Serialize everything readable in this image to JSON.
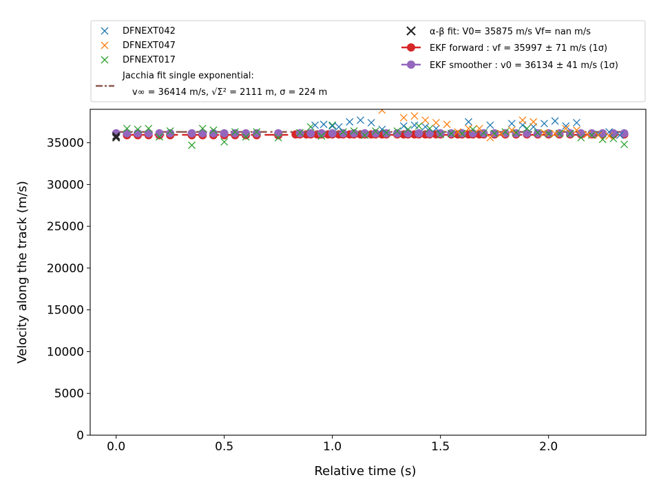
{
  "chart_data": {
    "type": "scatter",
    "xlabel": "Relative time (s)",
    "ylabel": "Velocity along the track (m/s)",
    "xlim": [
      -0.12,
      2.45
    ],
    "ylim": [
      0,
      39000
    ],
    "xticks": [
      0.0,
      0.5,
      1.0,
      1.5,
      2.0
    ],
    "xtick_labels": [
      "0.0",
      "0.5",
      "1.0",
      "1.5",
      "2.0"
    ],
    "yticks": [
      0,
      5000,
      10000,
      15000,
      20000,
      25000,
      30000,
      35000
    ],
    "ytick_labels": [
      "0",
      "5000",
      "10000",
      "15000",
      "20000",
      "25000",
      "30000",
      "35000"
    ],
    "grid": false,
    "legend_position": "above plot",
    "legend": {
      "left": [
        {
          "label": "DFNEXT042"
        },
        {
          "label": "DFNEXT047"
        },
        {
          "label": "DFNEXT017"
        },
        {
          "label": "Jacchia fit single exponential:"
        }
      ],
      "jacchia_detail": "v∞ = 36414 m/s, √Σ² = 2111 m, σ = 224 m",
      "right": [
        {
          "label": "α-β fit: V0= 35875 m/s   Vf= nan m/s"
        },
        {
          "label": "EKF forward : vf =  35997 ± 71 m/s (1σ)"
        },
        {
          "label": "EKF smoother : v0 =  36134 ± 41 m/s (1σ)"
        }
      ]
    },
    "series": [
      {
        "name": "DFNEXT042",
        "marker": "x",
        "color": "#1f77b4",
        "x": [
          0.92,
          0.96,
          1.0,
          1.03,
          1.08,
          1.13,
          1.18,
          1.23,
          1.33,
          1.38,
          1.43,
          1.48,
          1.63,
          1.73,
          1.83,
          1.88,
          1.93,
          1.98,
          2.03,
          2.08,
          2.13,
          2.23,
          2.28,
          2.33
        ],
        "y": [
          37100,
          37200,
          37000,
          36900,
          37500,
          37700,
          37400,
          36600,
          37000,
          37100,
          36900,
          36700,
          37500,
          37100,
          37300,
          37100,
          36900,
          37300,
          37600,
          37000,
          37400,
          36000,
          36300,
          35900
        ]
      },
      {
        "name": "DFNEXT047",
        "marker": "x",
        "color": "#ff7f0e",
        "x": [
          1.23,
          1.33,
          1.38,
          1.43,
          1.48,
          1.53,
          1.58,
          1.63,
          1.68,
          1.73,
          1.78,
          1.83,
          1.88,
          1.93,
          1.98,
          2.03,
          2.08,
          2.13,
          2.18,
          2.23,
          2.28
        ],
        "y": [
          38900,
          38000,
          38200,
          37700,
          37400,
          37200,
          36300,
          36700,
          36700,
          35600,
          36100,
          36500,
          37700,
          37500,
          36200,
          36100,
          36700,
          36500,
          36000,
          35900,
          35800
        ]
      },
      {
        "name": "DFNEXT017",
        "marker": "x",
        "color": "#2ca02c",
        "x": [
          0.0,
          0.05,
          0.1,
          0.15,
          0.2,
          0.25,
          0.35,
          0.4,
          0.45,
          0.5,
          0.55,
          0.6,
          0.65,
          0.75,
          0.85,
          0.9,
          0.95,
          1.0,
          1.05,
          1.1,
          1.15,
          1.2,
          1.25,
          1.3,
          1.35,
          1.4,
          1.45,
          1.5,
          1.55,
          1.6,
          1.65,
          1.7,
          1.75,
          1.8,
          1.85,
          1.9,
          1.95,
          2.0,
          2.05,
          2.1,
          2.15,
          2.2,
          2.25,
          2.3,
          2.35
        ],
        "y": [
          35700,
          36700,
          36600,
          36700,
          35700,
          36400,
          34700,
          36700,
          36500,
          35100,
          36300,
          35700,
          36300,
          35600,
          36200,
          36900,
          35800,
          37100,
          36300,
          36400,
          35900,
          36400,
          36200,
          36400,
          36600,
          37000,
          36700,
          36000,
          36100,
          36100,
          36600,
          36200,
          36100,
          36300,
          36200,
          36700,
          36200,
          36100,
          36100,
          36100,
          35600,
          35900,
          35400,
          35500,
          34800
        ]
      },
      {
        "name": "EKF forward",
        "marker": "circle",
        "color": "#d62728",
        "x": [
          0.05,
          0.1,
          0.15,
          0.2,
          0.25,
          0.35,
          0.4,
          0.45,
          0.5,
          0.55,
          0.6,
          0.65,
          0.75,
          0.83,
          0.85,
          0.88,
          0.9,
          0.93,
          0.95,
          0.98,
          1.0,
          1.03,
          1.05,
          1.08,
          1.1,
          1.13,
          1.15,
          1.18,
          1.2,
          1.23,
          1.25,
          1.3,
          1.33,
          1.35,
          1.38,
          1.4,
          1.43,
          1.45,
          1.48,
          1.5,
          1.55,
          1.58,
          1.6,
          1.63,
          1.65,
          1.68,
          1.7,
          1.75,
          1.8,
          1.85,
          1.9,
          1.95,
          2.0,
          2.05,
          2.1,
          2.15,
          2.2,
          2.25,
          2.3,
          2.35
        ],
        "y": [
          35900,
          35900,
          35900,
          35900,
          35900,
          35900,
          35900,
          35900,
          35900,
          35900,
          35900,
          35900,
          35900,
          36000,
          36000,
          36000,
          36000,
          36000,
          36000,
          36000,
          36000,
          36000,
          36000,
          36000,
          36000,
          36000,
          36000,
          36000,
          36000,
          36000,
          36000,
          36000,
          36000,
          36000,
          36000,
          36000,
          36000,
          36000,
          36000,
          36000,
          36000,
          36000,
          36000,
          36000,
          36000,
          36000,
          36000,
          36000,
          36000,
          36000,
          36000,
          36000,
          36000,
          36000,
          36000,
          36000,
          36000,
          36000,
          36000,
          36000
        ]
      },
      {
        "name": "EKF smoother",
        "marker": "circle",
        "color": "#9467bd",
        "x": [
          0.0,
          0.05,
          0.1,
          0.15,
          0.2,
          0.25,
          0.35,
          0.4,
          0.45,
          0.5,
          0.55,
          0.6,
          0.65,
          0.75,
          0.85,
          0.9,
          0.95,
          1.0,
          1.05,
          1.1,
          1.15,
          1.2,
          1.25,
          1.3,
          1.35,
          1.4,
          1.45,
          1.5,
          1.55,
          1.6,
          1.65,
          1.7,
          1.75,
          1.8,
          1.85,
          1.9,
          1.95,
          2.0,
          2.05,
          2.1,
          2.15,
          2.2,
          2.25,
          2.3,
          2.35
        ],
        "y": [
          36134,
          36130,
          36130,
          36130,
          36130,
          36130,
          36130,
          36130,
          36130,
          36130,
          36130,
          36130,
          36130,
          36130,
          36130,
          36130,
          36130,
          36130,
          36130,
          36130,
          36130,
          36130,
          36130,
          36130,
          36130,
          36130,
          36130,
          36130,
          36130,
          36130,
          36130,
          36130,
          36130,
          36130,
          36130,
          36130,
          36130,
          36130,
          36130,
          36130,
          36130,
          36130,
          36130,
          36130,
          36130
        ]
      },
      {
        "name": "α-β fit",
        "marker": "x",
        "color": "#262626",
        "x": [
          0.0,
          0.0
        ],
        "y": [
          35800,
          35600
        ]
      }
    ],
    "fit_lines": [
      {
        "name": "EKF forward",
        "style": "dashed",
        "color": "#d62728",
        "x": [
          0.05,
          2.35
        ],
        "y": [
          35950,
          35950
        ]
      },
      {
        "name": "Jacchia fit single exponential",
        "style": "dashdot",
        "color": "#8c564b",
        "x": [
          0.0,
          2.35
        ],
        "y": [
          36300,
          36300
        ]
      }
    ]
  }
}
